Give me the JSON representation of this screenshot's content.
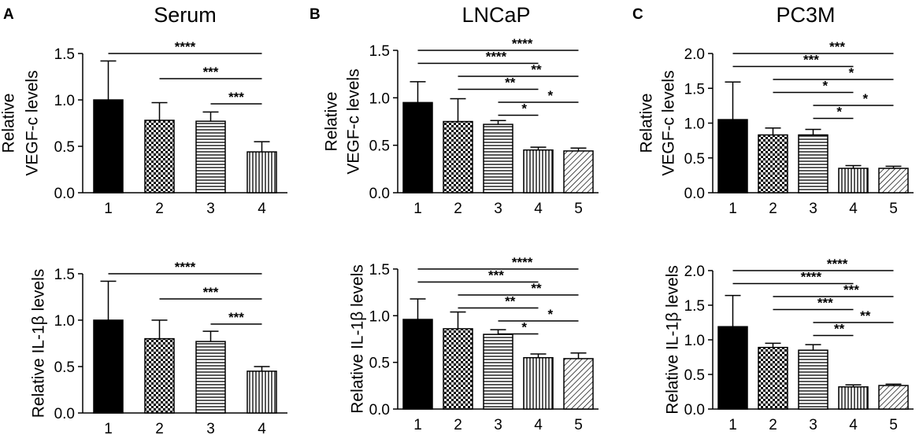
{
  "figure": {
    "panels": [
      {
        "letter": "A",
        "title": "Serum"
      },
      {
        "letter": "B",
        "title": "LNCaP"
      },
      {
        "letter": "C",
        "title": "PC3M"
      }
    ],
    "pattern_colors": {
      "bar": "#000000",
      "fill_pattern_bg": "#ffffff"
    }
  },
  "chart_data": [
    {
      "id": "serum-vegfc",
      "type": "bar",
      "ylabel": [
        "Relative",
        "VEGF-c levels"
      ],
      "categories": [
        "1",
        "2",
        "3",
        "4"
      ],
      "values": [
        1.0,
        0.78,
        0.77,
        0.44
      ],
      "errors": [
        0.42,
        0.19,
        0.1,
        0.11
      ],
      "patterns": [
        "solid",
        "checker",
        "horizontal",
        "vertical"
      ],
      "ylim": [
        0,
        1.5
      ],
      "yticks": [
        "0.0",
        "0.5",
        "1.0",
        "1.5"
      ],
      "significance": [
        {
          "from": 1,
          "to": 4,
          "label": "****"
        },
        {
          "from": 2,
          "to": 4,
          "label": "***"
        },
        {
          "from": 3,
          "to": 4,
          "label": "***"
        }
      ]
    },
    {
      "id": "lncap-vegfc",
      "type": "bar",
      "ylabel": [
        "Relative",
        "VEGF-c levels"
      ],
      "categories": [
        "1",
        "2",
        "3",
        "4",
        "5"
      ],
      "values": [
        0.95,
        0.75,
        0.72,
        0.45,
        0.44
      ],
      "errors": [
        0.22,
        0.24,
        0.04,
        0.03,
        0.03
      ],
      "patterns": [
        "solid",
        "checker",
        "horizontal",
        "vertical",
        "diagonal"
      ],
      "ylim": [
        0,
        1.5
      ],
      "yticks": [
        "0.0",
        "0.5",
        "1.0",
        "1.5"
      ],
      "significance": [
        {
          "from": 1,
          "to": 5,
          "label": "****"
        },
        {
          "from": 1,
          "to": 4,
          "label": "****"
        },
        {
          "from": 2,
          "to": 5,
          "label": "**"
        },
        {
          "from": 2,
          "to": 4,
          "label": "**"
        },
        {
          "from": 3,
          "to": 5,
          "label": "*"
        },
        {
          "from": 3,
          "to": 4,
          "label": "*"
        }
      ]
    },
    {
      "id": "pc3m-vegfc",
      "type": "bar",
      "ylabel": [
        "Relative",
        "VEGF-c levels"
      ],
      "categories": [
        "1",
        "2",
        "3",
        "4",
        "5"
      ],
      "values": [
        1.05,
        0.83,
        0.83,
        0.35,
        0.35
      ],
      "errors": [
        0.54,
        0.1,
        0.08,
        0.04,
        0.03
      ],
      "patterns": [
        "solid",
        "checker",
        "horizontal",
        "vertical",
        "diagonal"
      ],
      "ylim": [
        0,
        2.0
      ],
      "yticks": [
        "0.0",
        "0.5",
        "1.0",
        "1.5",
        "2.0"
      ],
      "significance": [
        {
          "from": 1,
          "to": 5,
          "label": "***"
        },
        {
          "from": 1,
          "to": 4,
          "label": "***"
        },
        {
          "from": 2,
          "to": 5,
          "label": "*"
        },
        {
          "from": 2,
          "to": 4,
          "label": "*"
        },
        {
          "from": 3,
          "to": 5,
          "label": "*"
        },
        {
          "from": 3,
          "to": 4,
          "label": "*"
        }
      ]
    },
    {
      "id": "serum-il1b",
      "type": "bar",
      "ylabel": [
        "Relative IL-1β levels"
      ],
      "categories": [
        "1",
        "2",
        "3",
        "4"
      ],
      "values": [
        1.0,
        0.8,
        0.77,
        0.45
      ],
      "errors": [
        0.42,
        0.2,
        0.11,
        0.05
      ],
      "patterns": [
        "solid",
        "checker",
        "horizontal",
        "vertical"
      ],
      "ylim": [
        0,
        1.5
      ],
      "yticks": [
        "0.0",
        "0.5",
        "1.0",
        "1.5"
      ],
      "significance": [
        {
          "from": 1,
          "to": 4,
          "label": "****"
        },
        {
          "from": 2,
          "to": 4,
          "label": "***"
        },
        {
          "from": 3,
          "to": 4,
          "label": "***"
        }
      ]
    },
    {
      "id": "lncap-il1b",
      "type": "bar",
      "ylabel": [
        "Relative IL-1β levels"
      ],
      "categories": [
        "1",
        "2",
        "3",
        "4",
        "5"
      ],
      "values": [
        0.96,
        0.86,
        0.8,
        0.55,
        0.54
      ],
      "errors": [
        0.22,
        0.18,
        0.05,
        0.04,
        0.06
      ],
      "patterns": [
        "solid",
        "checker",
        "horizontal",
        "vertical",
        "diagonal"
      ],
      "ylim": [
        0,
        1.5
      ],
      "yticks": [
        "0.0",
        "0.5",
        "1.0",
        "1.5"
      ],
      "significance": [
        {
          "from": 1,
          "to": 5,
          "label": "****"
        },
        {
          "from": 1,
          "to": 4,
          "label": "***"
        },
        {
          "from": 2,
          "to": 5,
          "label": "**"
        },
        {
          "from": 2,
          "to": 4,
          "label": "**"
        },
        {
          "from": 3,
          "to": 5,
          "label": "*"
        },
        {
          "from": 3,
          "to": 4,
          "label": "*"
        }
      ]
    },
    {
      "id": "pc3m-il1b",
      "type": "bar",
      "ylabel": [
        "Relative IL-1β levels"
      ],
      "categories": [
        "1",
        "2",
        "3",
        "4",
        "5"
      ],
      "values": [
        1.19,
        0.89,
        0.85,
        0.32,
        0.34
      ],
      "errors": [
        0.45,
        0.06,
        0.08,
        0.03,
        0.02
      ],
      "patterns": [
        "solid",
        "checker",
        "horizontal",
        "vertical",
        "diagonal"
      ],
      "ylim": [
        0,
        2.0
      ],
      "yticks": [
        "0.0",
        "0.5",
        "1.0",
        "1.5",
        "2.0"
      ],
      "significance": [
        {
          "from": 1,
          "to": 5,
          "label": "****"
        },
        {
          "from": 1,
          "to": 4,
          "label": "****"
        },
        {
          "from": 2,
          "to": 5,
          "label": "***"
        },
        {
          "from": 2,
          "to": 4,
          "label": "***"
        },
        {
          "from": 3,
          "to": 5,
          "label": "**"
        },
        {
          "from": 3,
          "to": 4,
          "label": "**"
        }
      ]
    }
  ]
}
